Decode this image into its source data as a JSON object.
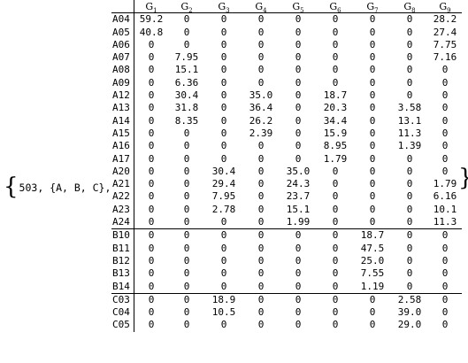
{
  "prefix": "503, {A, B, C},",
  "columns": [
    {
      "base": "G",
      "sub": "1"
    },
    {
      "base": "G",
      "sub": "2"
    },
    {
      "base": "G",
      "sub": "3"
    },
    {
      "base": "G",
      "sub": "4"
    },
    {
      "base": "G",
      "sub": "5"
    },
    {
      "base": "G",
      "sub": "6"
    },
    {
      "base": "G",
      "sub": "7"
    },
    {
      "base": "G",
      "sub": "8"
    },
    {
      "base": "G",
      "sub": "9"
    }
  ],
  "groups": [
    {
      "rows": [
        {
          "label": "A04",
          "values": [
            "59.2",
            "0",
            "0",
            "0",
            "0",
            "0",
            "0",
            "0",
            "28.2"
          ]
        },
        {
          "label": "A05",
          "values": [
            "40.8",
            "0",
            "0",
            "0",
            "0",
            "0",
            "0",
            "0",
            "27.4"
          ]
        },
        {
          "label": "A06",
          "values": [
            "0",
            "0",
            "0",
            "0",
            "0",
            "0",
            "0",
            "0",
            "7.75"
          ]
        },
        {
          "label": "A07",
          "values": [
            "0",
            "7.95",
            "0",
            "0",
            "0",
            "0",
            "0",
            "0",
            "7.16"
          ]
        },
        {
          "label": "A08",
          "values": [
            "0",
            "15.1",
            "0",
            "0",
            "0",
            "0",
            "0",
            "0",
            "0"
          ]
        },
        {
          "label": "A09",
          "values": [
            "0",
            "6.36",
            "0",
            "0",
            "0",
            "0",
            "0",
            "0",
            "0"
          ]
        },
        {
          "label": "A12",
          "values": [
            "0",
            "30.4",
            "0",
            "35.0",
            "0",
            "18.7",
            "0",
            "0",
            "0"
          ]
        },
        {
          "label": "A13",
          "values": [
            "0",
            "31.8",
            "0",
            "36.4",
            "0",
            "20.3",
            "0",
            "3.58",
            "0"
          ]
        },
        {
          "label": "A14",
          "values": [
            "0",
            "8.35",
            "0",
            "26.2",
            "0",
            "34.4",
            "0",
            "13.1",
            "0"
          ]
        },
        {
          "label": "A15",
          "values": [
            "0",
            "0",
            "0",
            "2.39",
            "0",
            "15.9",
            "0",
            "11.3",
            "0"
          ]
        },
        {
          "label": "A16",
          "values": [
            "0",
            "0",
            "0",
            "0",
            "0",
            "8.95",
            "0",
            "1.39",
            "0"
          ]
        },
        {
          "label": "A17",
          "values": [
            "0",
            "0",
            "0",
            "0",
            "0",
            "1.79",
            "0",
            "0",
            "0"
          ]
        },
        {
          "label": "A20",
          "values": [
            "0",
            "0",
            "30.4",
            "0",
            "35.0",
            "0",
            "0",
            "0",
            "0"
          ]
        },
        {
          "label": "A21",
          "values": [
            "0",
            "0",
            "29.4",
            "0",
            "24.3",
            "0",
            "0",
            "0",
            "1.79"
          ]
        },
        {
          "label": "A22",
          "values": [
            "0",
            "0",
            "7.95",
            "0",
            "23.7",
            "0",
            "0",
            "0",
            "6.16"
          ]
        },
        {
          "label": "A23",
          "values": [
            "0",
            "0",
            "2.78",
            "0",
            "15.1",
            "0",
            "0",
            "0",
            "10.1"
          ]
        },
        {
          "label": "A24",
          "values": [
            "0",
            "0",
            "0",
            "0",
            "1.99",
            "0",
            "0",
            "0",
            "11.3"
          ]
        }
      ]
    },
    {
      "rows": [
        {
          "label": "B10",
          "values": [
            "0",
            "0",
            "0",
            "0",
            "0",
            "0",
            "18.7",
            "0",
            "0"
          ]
        },
        {
          "label": "B11",
          "values": [
            "0",
            "0",
            "0",
            "0",
            "0",
            "0",
            "47.5",
            "0",
            "0"
          ]
        },
        {
          "label": "B12",
          "values": [
            "0",
            "0",
            "0",
            "0",
            "0",
            "0",
            "25.0",
            "0",
            "0"
          ]
        },
        {
          "label": "B13",
          "values": [
            "0",
            "0",
            "0",
            "0",
            "0",
            "0",
            "7.55",
            "0",
            "0"
          ]
        },
        {
          "label": "B14",
          "values": [
            "0",
            "0",
            "0",
            "0",
            "0",
            "0",
            "1.19",
            "0",
            "0"
          ]
        }
      ]
    },
    {
      "rows": [
        {
          "label": "C03",
          "values": [
            "0",
            "0",
            "18.9",
            "0",
            "0",
            "0",
            "0",
            "2.58",
            "0"
          ]
        },
        {
          "label": "C04",
          "values": [
            "0",
            "0",
            "10.5",
            "0",
            "0",
            "0",
            "0",
            "39.0",
            "0"
          ]
        },
        {
          "label": "C05",
          "values": [
            "0",
            "0",
            "0",
            "0",
            "0",
            "0",
            "0",
            "29.0",
            "0"
          ]
        }
      ]
    }
  ]
}
